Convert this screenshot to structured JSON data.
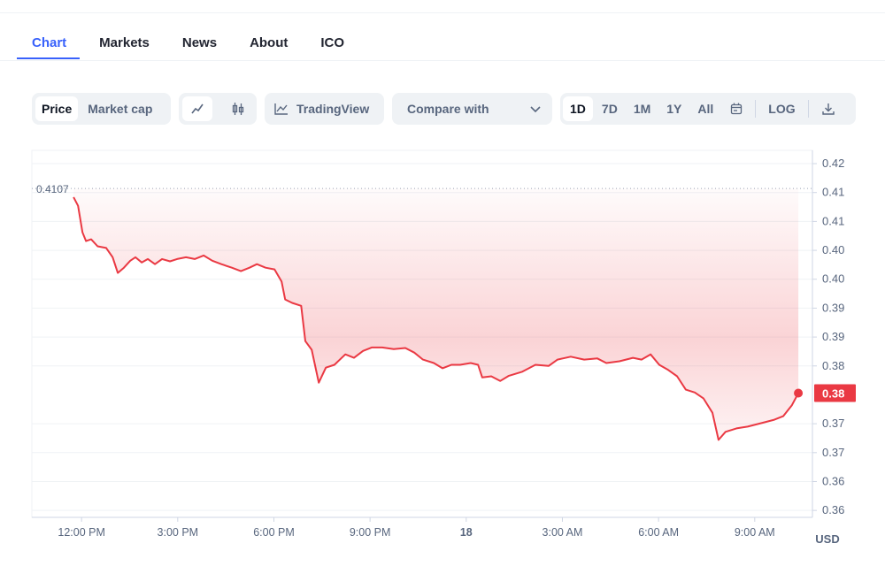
{
  "tabs": [
    "Chart",
    "Markets",
    "News",
    "About",
    "ICO"
  ],
  "toolbar": {
    "price": "Price",
    "market_cap": "Market cap",
    "tradingview": "TradingView",
    "compare": "Compare with",
    "ranges": [
      "1D",
      "7D",
      "1M",
      "1Y",
      "All"
    ],
    "log": "LOG"
  },
  "chart_data": {
    "type": "line",
    "color": "#ea3943",
    "x": [
      11.75,
      11.89,
      12.03,
      12.14,
      12.3,
      12.5,
      12.77,
      12.97,
      13.13,
      13.32,
      13.52,
      13.68,
      13.88,
      14.07,
      14.29,
      14.51,
      14.76,
      14.98,
      15.26,
      15.53,
      15.81,
      16.08,
      16.36,
      16.69,
      16.97,
      17.24,
      17.47,
      17.74,
      18.02,
      18.24,
      18.35,
      18.57,
      18.85,
      18.98,
      19.18,
      19.4,
      19.62,
      19.89,
      20.23,
      20.5,
      20.78,
      21.05,
      21.38,
      21.74,
      22.1,
      22.38,
      22.65,
      22.99,
      23.26,
      23.54,
      23.81,
      24.14,
      24.37,
      24.5,
      24.78,
      25.06,
      25.33,
      25.75,
      26.16,
      26.57,
      26.85,
      27.26,
      27.68,
      28.09,
      28.37,
      28.78,
      29.2,
      29.47,
      29.75,
      30.02,
      30.3,
      30.58,
      30.85,
      31.13,
      31.4,
      31.68,
      31.87,
      32.09,
      32.43,
      32.78,
      33.2,
      33.61,
      33.89,
      34.16,
      34.36
    ],
    "values": [
      0.4092,
      0.4077,
      0.4031,
      0.4016,
      0.4019,
      0.4007,
      0.4004,
      0.3988,
      0.3961,
      0.397,
      0.3982,
      0.3988,
      0.3979,
      0.3985,
      0.3976,
      0.3985,
      0.3981,
      0.3985,
      0.3988,
      0.3985,
      0.3991,
      0.3982,
      0.3976,
      0.397,
      0.3964,
      0.397,
      0.3976,
      0.397,
      0.3967,
      0.3946,
      0.3915,
      0.3909,
      0.3904,
      0.3843,
      0.3828,
      0.3771,
      0.3797,
      0.3802,
      0.382,
      0.3814,
      0.3826,
      0.3832,
      0.3832,
      0.3829,
      0.3831,
      0.3823,
      0.3811,
      0.3805,
      0.3796,
      0.3802,
      0.3802,
      0.3805,
      0.3802,
      0.378,
      0.3782,
      0.3774,
      0.3783,
      0.379,
      0.3802,
      0.38,
      0.3811,
      0.3816,
      0.3811,
      0.3813,
      0.3805,
      0.3808,
      0.3814,
      0.3811,
      0.382,
      0.3802,
      0.3793,
      0.3782,
      0.3759,
      0.3754,
      0.3744,
      0.3719,
      0.3672,
      0.3686,
      0.3692,
      0.3695,
      0.3701,
      0.3707,
      0.3713,
      0.3732,
      0.3753
    ],
    "xlim": [
      10.45,
      34.8
    ],
    "xticks": [
      {
        "value": 12,
        "label": "12:00 PM"
      },
      {
        "value": 15,
        "label": "3:00 PM"
      },
      {
        "value": 18,
        "label": "6:00 PM"
      },
      {
        "value": 21,
        "label": "9:00 PM"
      },
      {
        "value": 24,
        "label": "18"
      },
      {
        "value": 27,
        "label": "3:00 AM"
      },
      {
        "value": 30,
        "label": "6:00 AM"
      },
      {
        "value": 33,
        "label": "9:00 AM"
      }
    ],
    "ylim": [
      0.3538,
      0.4173
    ],
    "yticks": [
      {
        "value": 0.415,
        "label": "0.42"
      },
      0.41,
      {
        "value": 0.405,
        "label": "0.41"
      },
      {
        "value": 0.4,
        "label": "0.40"
      },
      {
        "value": 0.395,
        "label": "0.40"
      },
      0.39,
      {
        "value": 0.385,
        "label": "0.39"
      },
      {
        "value": 0.38,
        "label": "0.38"
      },
      0.37,
      {
        "value": 0.365,
        "label": "0.37"
      },
      0.36,
      {
        "value": 0.355,
        "label": "0.36"
      }
    ],
    "high": 0.4107,
    "current_price": {
      "value": 0.3753,
      "label": "0.38"
    },
    "y_unit": "USD",
    "grid": true
  }
}
